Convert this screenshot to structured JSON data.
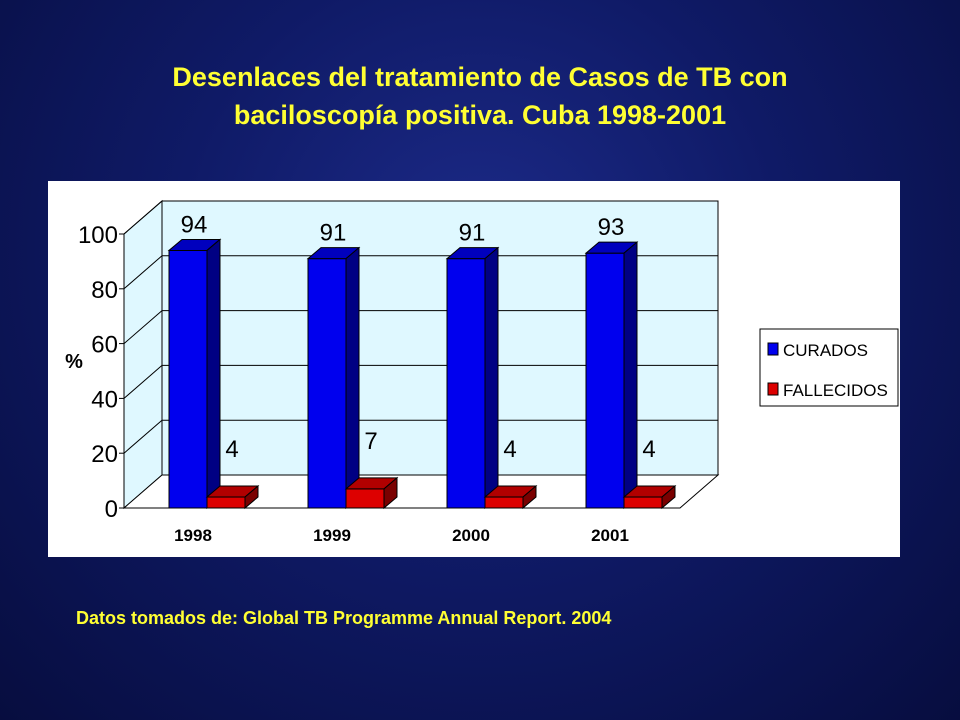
{
  "title": {
    "line1": "Desenlaces del tratamiento de Casos de TB con",
    "line2": "baciloscopía positiva. Cuba 1998-2001"
  },
  "footnote": "Datos tomados de: Global TB Programme Annual Report. 2004",
  "colors": {
    "curados": "#0000ee",
    "fallecidos": "#dd0000",
    "plot_wall": "#dff8ff",
    "title_text": "#ffff33",
    "background": "#0f1a66"
  },
  "chart_data": {
    "type": "bar",
    "categories": [
      "1998",
      "1999",
      "2000",
      "2001"
    ],
    "series": [
      {
        "name": "CURADOS",
        "values": [
          94,
          91,
          91,
          93
        ],
        "labels": [
          "94",
          "91",
          "91",
          "93"
        ]
      },
      {
        "name": "FALLECIDOS",
        "values": [
          4,
          7,
          4,
          4
        ],
        "labels": [
          "4",
          "7",
          "4",
          "4"
        ]
      }
    ],
    "ylabel": "%",
    "ylim": [
      0,
      100
    ],
    "yticks": [
      "0",
      "20",
      "40",
      "60",
      "80",
      "100"
    ],
    "grid": true,
    "three_d": true,
    "legend_position": "right"
  }
}
